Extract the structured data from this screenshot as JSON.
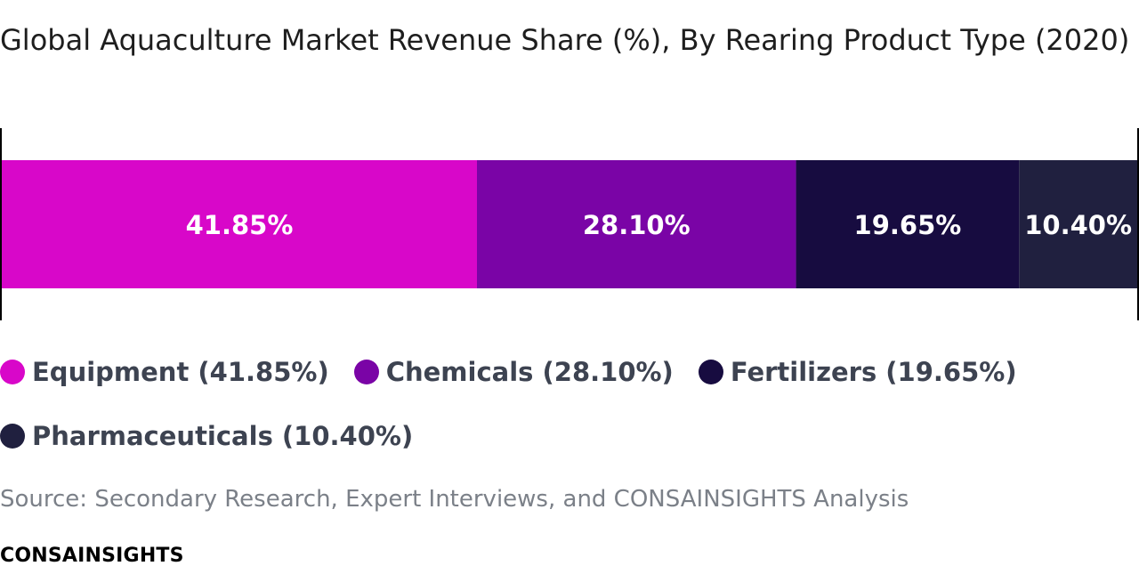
{
  "chart_data": {
    "type": "bar",
    "orientation": "horizontal-stacked-100",
    "title": "Global Aquaculture Market Revenue Share (%), By Rearing Product Type (2020)",
    "categories": [
      "Equipment",
      "Chemicals",
      "Fertilizers",
      "Pharmaceuticals"
    ],
    "values": [
      41.85,
      28.1,
      19.65,
      10.4
    ],
    "value_labels": [
      "41.85%",
      "28.10%",
      "19.65%",
      "10.40%"
    ],
    "legend_labels": [
      "Equipment (41.85%)",
      "Chemicals (28.10%)",
      "Fertilizers (19.65%)",
      "Pharmaceuticals (10.40%)"
    ],
    "colors": [
      "#d807c9",
      "#7a04a6",
      "#170c40",
      "#20203f"
    ],
    "legend_position": "bottom",
    "grid": false
  },
  "source": "Source: Secondary Research, Expert Interviews, and CONSAINSIGHTS Analysis",
  "brand": "CONSAINSIGHTS"
}
